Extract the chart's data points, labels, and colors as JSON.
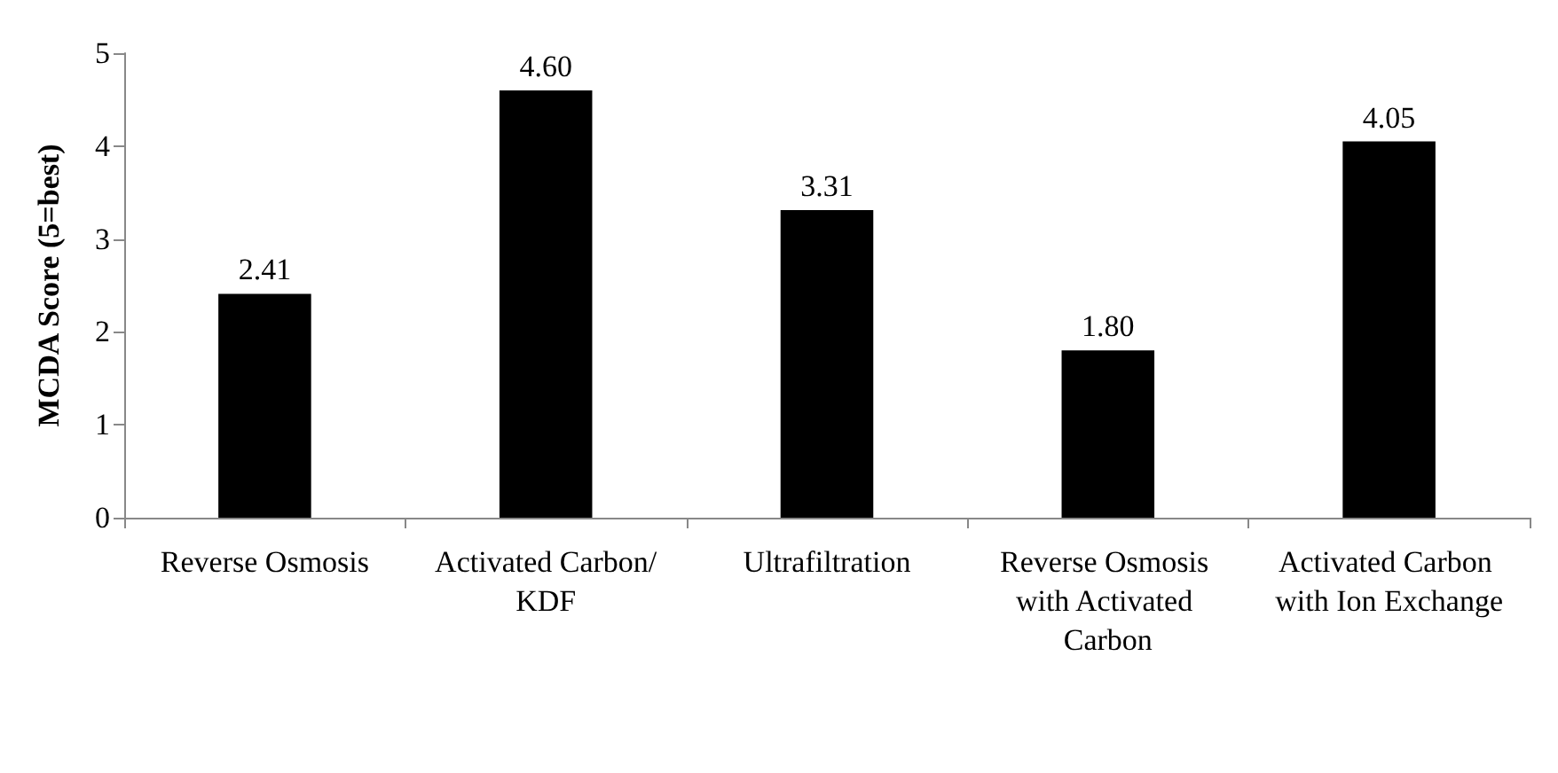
{
  "chart_data": {
    "type": "bar",
    "ylabel": "MCDA Score (5=best)",
    "categories": [
      "Reverse Osmosis",
      "Activated Carbon/KDF",
      "Ultrafiltration",
      "Reverse Osmosis with Activated Carbon",
      "Activated Carbon with Ion Exchange"
    ],
    "values": [
      2.41,
      4.6,
      3.31,
      1.8,
      4.05
    ],
    "value_labels": [
      "2.41",
      "4.60",
      "3.31",
      "1.80",
      "4.05"
    ],
    "color": "#000000",
    "ylim": [
      0,
      5
    ],
    "yticks": [
      0,
      1,
      2,
      3,
      4,
      5
    ],
    "grid": false
  }
}
